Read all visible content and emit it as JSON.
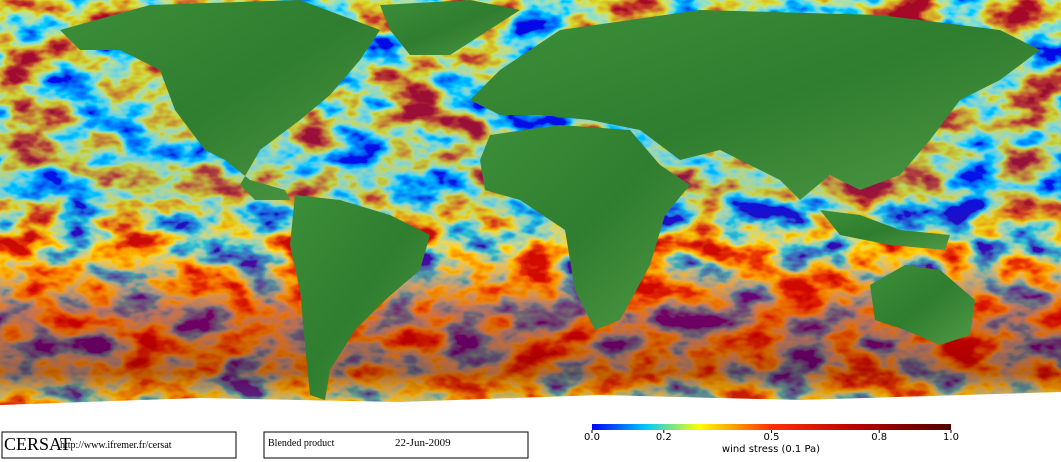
{
  "footer": {
    "brand": "CERSAT",
    "url": "http://www.ifremer.fr/cersat",
    "product": "Blended product",
    "date": "22-Jun-2009"
  },
  "colorbar": {
    "label": "wind stress (0.1 Pa)",
    "lim": [
      0,
      1
    ],
    "ticks": [
      {
        "value": 0,
        "label": "0.0"
      },
      0.2,
      0.5,
      0.8,
      {
        "value": 1,
        "label": "1.0"
      }
    ]
  }
}
